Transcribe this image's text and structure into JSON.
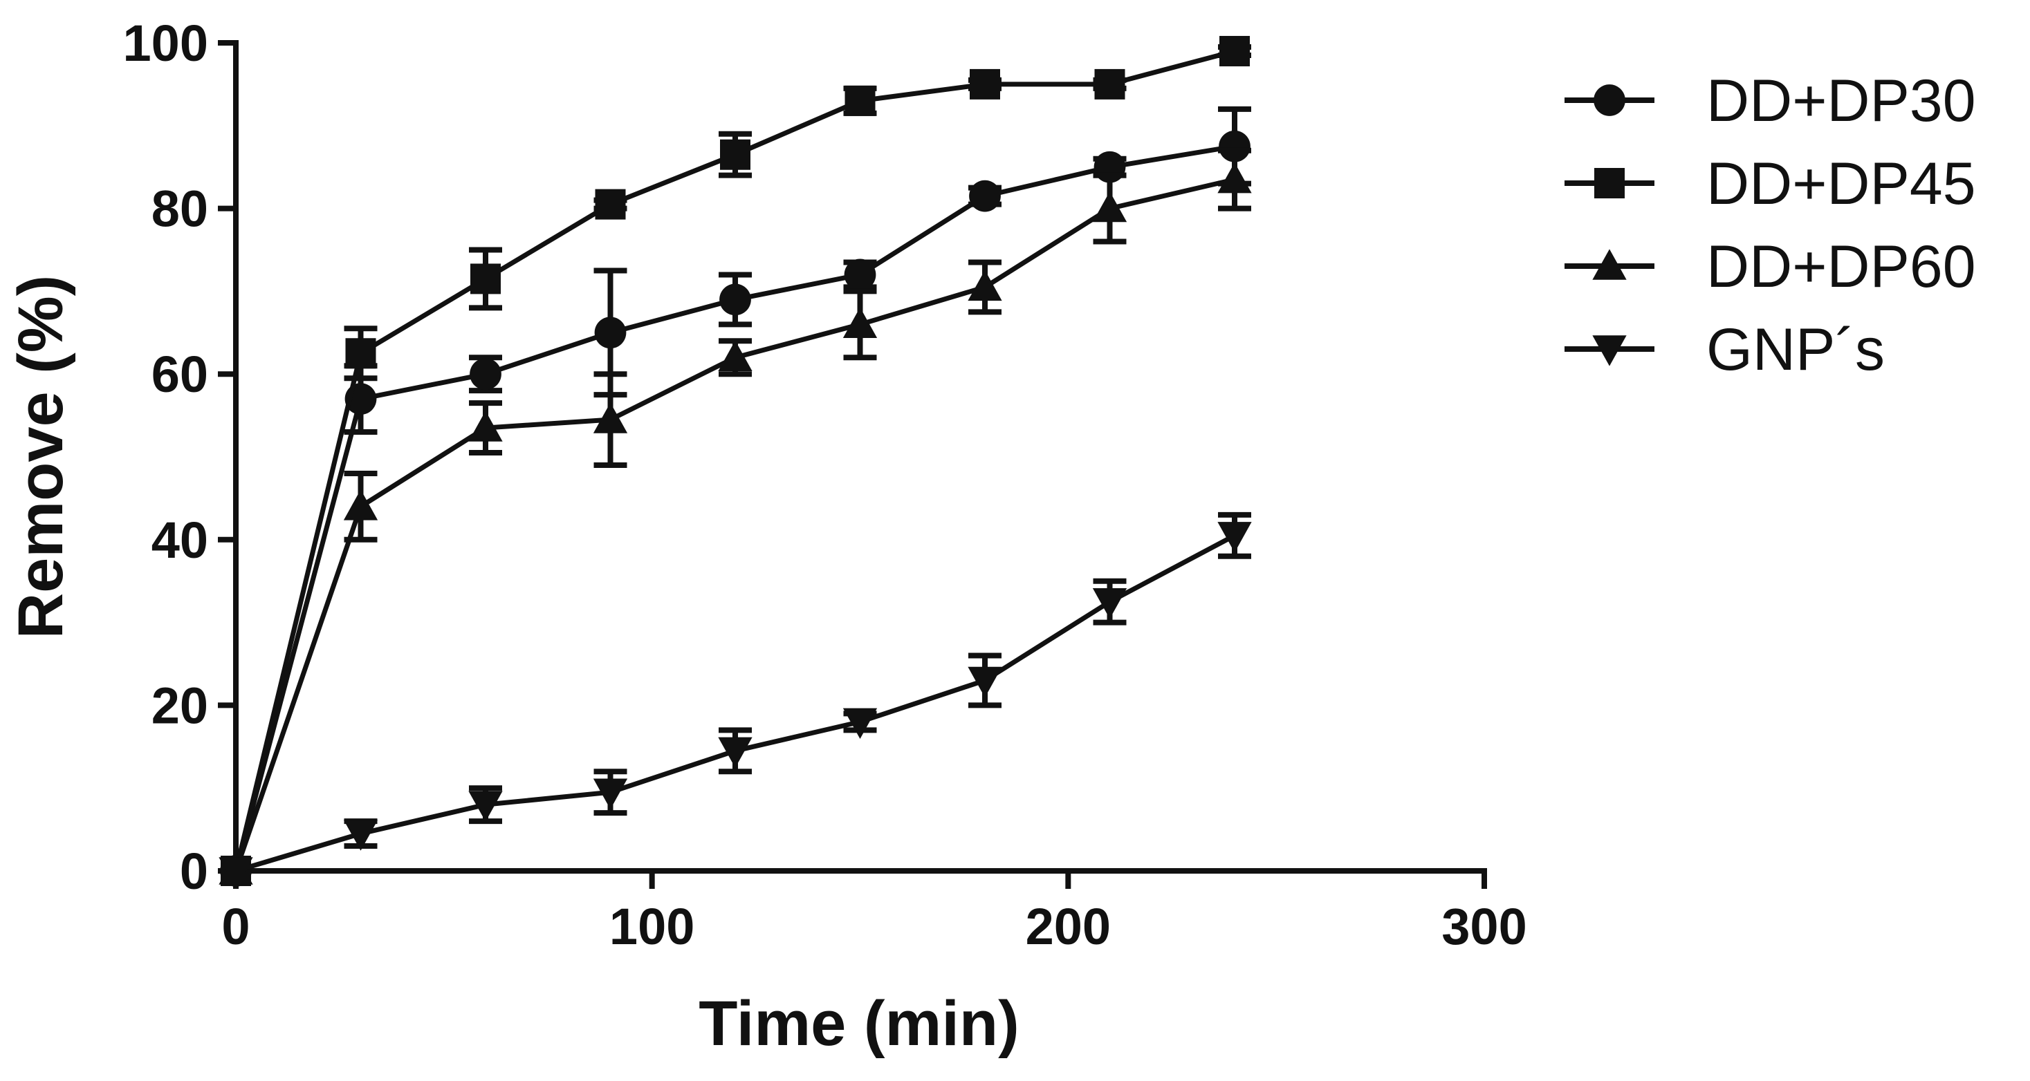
{
  "chart_data": {
    "type": "line",
    "title": "",
    "xlabel": "Time (min)",
    "ylabel": "Remove (%)",
    "xlim": [
      0,
      300
    ],
    "ylim": [
      0,
      100
    ],
    "xticks": [
      0,
      100,
      200,
      300
    ],
    "yticks": [
      0,
      20,
      40,
      60,
      80,
      100
    ],
    "grid": false,
    "legend_position": "right",
    "color": "#111111",
    "x": [
      0,
      30,
      60,
      90,
      120,
      150,
      180,
      210,
      240
    ],
    "series": [
      {
        "name": "DD+DP30",
        "marker": "circle",
        "values": [
          0,
          57,
          60,
          65,
          69,
          72,
          81.5,
          85,
          87.5
        ],
        "errors": [
          0,
          4,
          2,
          7.5,
          3,
          1.5,
          1,
          1,
          4.5
        ]
      },
      {
        "name": "DD+DP45",
        "marker": "square",
        "values": [
          0,
          62.5,
          71.5,
          80.5,
          86.5,
          93,
          95,
          95,
          99
        ],
        "errors": [
          0,
          3,
          3.5,
          0.5,
          2.5,
          1.5,
          0.5,
          0.5,
          0.5
        ]
      },
      {
        "name": "DD+DP60",
        "marker": "triangle-up",
        "values": [
          0,
          44,
          53.5,
          54.5,
          62,
          66,
          70.5,
          80,
          83.5
        ],
        "errors": [
          0,
          4,
          3,
          5.5,
          2,
          4,
          3,
          4,
          3.5
        ]
      },
      {
        "name": "GNP´s",
        "marker": "triangle-down",
        "values": [
          0,
          4.5,
          8,
          9.5,
          14.5,
          18,
          23,
          32.5,
          40.5
        ],
        "errors": [
          0,
          1.5,
          2,
          2.5,
          2.5,
          1,
          3,
          2.5,
          2.5
        ]
      }
    ]
  }
}
